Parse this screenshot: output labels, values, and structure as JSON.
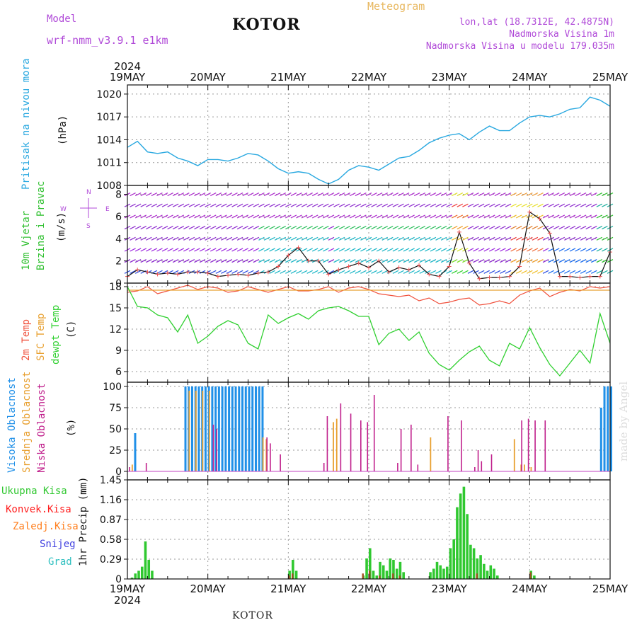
{
  "header": {
    "model_label": "Model",
    "model_name": "wrf-nmm_v3.9.1  e1km",
    "title": "KOTOR",
    "meteogram_label": "Meteogram",
    "lonlat": "lon,lat (18.7312E, 42.4875N)",
    "altitude": "Nadmorska Visina 1m",
    "model_altitude": "Nadmorska Visina u modelu 179.035m"
  },
  "footer": {
    "station": "KOTOR",
    "credit": "made by Angel"
  },
  "time_axis": {
    "year": "2024",
    "days": [
      "19MAY",
      "20MAY",
      "21MAY",
      "22MAY",
      "23MAY",
      "24MAY",
      "25MAY"
    ]
  },
  "colors": {
    "pressure": "#29a8e0",
    "temp2m": "#f0503c",
    "sfc_temp": "#e8a030",
    "dewpoint": "#30d030",
    "high_cloud": "#2090e8",
    "mid_cloud": "#e8a030",
    "low_cloud": "#c0208c",
    "wind_label": "#30c030",
    "compass": "#b04ad8",
    "total_precip": "#30c830",
    "conv_precip": "#ff2020",
    "frozen_precip": "#ff8020",
    "snow": "#4040e0",
    "hail": "#30c0c0"
  },
  "panels": {
    "pressure": {
      "label": "Pritisak na nivou mora",
      "unit": "(hPa)",
      "ticks": [
        "1008",
        "1011",
        "1014",
        "1017",
        "1020"
      ]
    },
    "wind": {
      "label1": "10m Vjetar",
      "label2": "Brzina i Pravac",
      "unit": "(m/s)",
      "ticks": [
        "0",
        "2",
        "4",
        "6",
        "8"
      ],
      "compass": {
        "n": "N",
        "s": "S",
        "e": "E",
        "w": "W"
      }
    },
    "temperature": {
      "label1": "2m Temp",
      "label2": "SFC Temp",
      "label3": "dewpt Temp",
      "unit": "(C)",
      "ticks": [
        "6",
        "9",
        "12",
        "15",
        "18"
      ]
    },
    "clouds": {
      "label1": "Visoka Oblacnost",
      "label2": "Srednja Oblacnost",
      "label3": "Niska Oblacnost",
      "unit": "(%)",
      "ticks": [
        "0",
        "25",
        "50",
        "75",
        "100"
      ]
    },
    "precip": {
      "label": "1hr Precip (mm)",
      "ticks": [
        "0",
        "0.29",
        "0.58",
        "0.87",
        "1.16",
        "1.45"
      ],
      "legend": [
        "Ukupna Kisa",
        "Konvek.Kisa",
        "Zaledj.Kisa",
        "Snijeg",
        "Grad"
      ]
    }
  },
  "chart_data": [
    {
      "type": "line",
      "ylabel": "Pritisak na nivou mora (hPa)",
      "ylim": [
        1008,
        1021.2
      ],
      "series": [
        {
          "name": "Pritisak na nivou mora",
          "x": [
            0,
            3,
            6,
            9,
            12,
            15,
            18,
            21,
            24,
            27,
            30,
            33,
            36,
            39,
            42,
            45,
            48,
            51,
            54,
            57,
            60,
            63,
            66,
            69,
            72,
            75,
            78,
            81,
            84,
            87,
            90,
            93,
            96,
            99,
            102,
            105,
            108,
            111,
            114,
            117,
            120,
            123,
            126,
            129,
            132,
            135,
            138,
            141,
            144
          ],
          "values": [
            1013.0,
            1013.8,
            1012.4,
            1012.2,
            1012.4,
            1011.6,
            1011.2,
            1010.6,
            1011.4,
            1011.4,
            1011.2,
            1011.6,
            1012.2,
            1012.0,
            1011.2,
            1010.2,
            1009.6,
            1009.8,
            1009.6,
            1008.8,
            1008.2,
            1008.8,
            1010.0,
            1010.6,
            1010.4,
            1010.0,
            1010.8,
            1011.6,
            1011.8,
            1012.6,
            1013.6,
            1014.2,
            1014.6,
            1014.8,
            1014.0,
            1015.0,
            1015.8,
            1015.2,
            1015.2,
            1016.2,
            1017.0,
            1017.2,
            1017.0,
            1017.4,
            1018.0,
            1018.2,
            1019.6,
            1019.2,
            1018.4
          ]
        }
      ],
      "x_unit": "hours from 19MAY 00UTC"
    },
    {
      "type": "line",
      "ylabel": "10m Vjetar Brzina i Pravac (m/s)",
      "ylim": [
        0,
        8.8
      ],
      "grid": true,
      "series": [
        {
          "name": "10m Vjetar",
          "x": [
            0,
            3,
            6,
            9,
            12,
            15,
            18,
            21,
            24,
            27,
            30,
            33,
            36,
            39,
            42,
            45,
            48,
            51,
            54,
            57,
            60,
            63,
            66,
            69,
            72,
            75,
            78,
            81,
            84,
            87,
            90,
            93,
            96,
            99,
            102,
            105,
            108,
            111,
            114,
            117,
            120,
            123,
            126,
            129,
            132,
            135,
            138,
            141,
            144
          ],
          "values": [
            0.6,
            1.2,
            1.0,
            0.8,
            0.9,
            0.8,
            1.0,
            1.0,
            0.9,
            0.6,
            0.7,
            0.8,
            0.7,
            0.9,
            1.0,
            1.5,
            2.5,
            3.2,
            2.0,
            2.0,
            0.8,
            1.2,
            1.5,
            1.8,
            1.4,
            2.0,
            1.0,
            1.4,
            1.2,
            1.6,
            0.8,
            0.6,
            1.5,
            4.6,
            1.8,
            0.4,
            0.5,
            0.5,
            0.6,
            1.5,
            6.4,
            5.8,
            4.5,
            0.6,
            0.6,
            0.5,
            0.6,
            0.6,
            2.8
          ]
        }
      ]
    },
    {
      "type": "line",
      "ylabel": "Temp (C)",
      "ylim": [
        4.5,
        18.5
      ],
      "series": [
        {
          "name": "2m Temp",
          "x": [
            0,
            3,
            6,
            9,
            12,
            15,
            18,
            21,
            24,
            27,
            30,
            33,
            36,
            39,
            42,
            45,
            48,
            51,
            54,
            57,
            60,
            63,
            66,
            69,
            72,
            75,
            78,
            81,
            84,
            87,
            90,
            93,
            96,
            99,
            102,
            105,
            108,
            111,
            114,
            117,
            120,
            123,
            126,
            129,
            132,
            135,
            138,
            141,
            144
          ],
          "values": [
            17.2,
            17.4,
            18.0,
            17.0,
            17.4,
            17.8,
            18.2,
            17.6,
            18.0,
            17.8,
            17.2,
            17.4,
            18.0,
            17.6,
            17.2,
            17.6,
            18.0,
            17.4,
            17.4,
            17.6,
            18.0,
            17.2,
            17.8,
            18.0,
            17.6,
            17.0,
            16.8,
            16.6,
            16.8,
            16.0,
            16.4,
            15.6,
            15.8,
            16.2,
            16.4,
            15.4,
            15.6,
            16.0,
            15.6,
            16.8,
            17.4,
            17.8,
            16.6,
            17.2,
            17.6,
            17.4,
            18.0,
            17.8,
            18.0
          ]
        },
        {
          "name": "SFC Temp",
          "x": [
            0,
            144
          ],
          "values": [
            17.5,
            17.5
          ]
        },
        {
          "name": "dewpt Temp",
          "x": [
            0,
            3,
            6,
            9,
            12,
            15,
            18,
            21,
            24,
            27,
            30,
            33,
            36,
            39,
            42,
            45,
            48,
            51,
            54,
            57,
            60,
            63,
            66,
            69,
            72,
            75,
            78,
            81,
            84,
            87,
            90,
            93,
            96,
            99,
            102,
            105,
            108,
            111,
            114,
            117,
            120,
            123,
            126,
            129,
            132,
            135,
            138,
            141,
            144
          ],
          "values": [
            18.0,
            15.2,
            15.0,
            14.0,
            13.6,
            11.6,
            14.0,
            10.0,
            11.0,
            12.4,
            13.2,
            12.6,
            10.0,
            9.2,
            14.0,
            12.8,
            13.6,
            14.2,
            13.4,
            14.6,
            15.0,
            15.2,
            14.6,
            13.8,
            13.8,
            9.8,
            11.4,
            12.0,
            10.4,
            11.6,
            8.6,
            7.0,
            6.2,
            7.6,
            8.8,
            9.6,
            7.6,
            6.8,
            10.0,
            9.2,
            12.2,
            9.4,
            7.0,
            5.4,
            7.2,
            9.0,
            7.2,
            14.2,
            10.0
          ]
        }
      ]
    },
    {
      "type": "bar",
      "ylabel": "Oblacnost (%)",
      "ylim": [
        0,
        100
      ],
      "series": [
        {
          "name": "Visoka Oblacnost",
          "x": [
            2,
            17,
            18,
            19,
            20,
            21,
            22,
            23,
            24,
            25,
            26,
            27,
            28,
            29,
            30,
            31,
            32,
            33,
            34,
            35,
            36,
            37,
            38,
            39,
            40,
            141,
            142,
            143,
            144
          ],
          "values": [
            45,
            100,
            100,
            100,
            100,
            100,
            100,
            100,
            100,
            100,
            100,
            100,
            100,
            100,
            100,
            100,
            100,
            100,
            100,
            100,
            100,
            100,
            100,
            100,
            100,
            75,
            100,
            100,
            100
          ]
        },
        {
          "name": "Srednja Oblacnost",
          "x": [
            1,
            18,
            20,
            22,
            24,
            40,
            41,
            61,
            62,
            90,
            115,
            117,
            118,
            120
          ],
          "values": [
            8,
            95,
            95,
            95,
            95,
            40,
            38,
            58,
            62,
            40,
            38,
            8,
            8,
            5
          ]
        },
        {
          "name": "Niska Oblacnost",
          "x": [
            0,
            5,
            25,
            26,
            41,
            42,
            45,
            58,
            59,
            63,
            66,
            69,
            71,
            73,
            80,
            81,
            84,
            86,
            95,
            99,
            103,
            104,
            105,
            108,
            117,
            119,
            121,
            124
          ],
          "values": [
            5,
            10,
            55,
            50,
            40,
            33,
            20,
            10,
            65,
            80,
            68,
            60,
            58,
            90,
            10,
            50,
            55,
            8,
            65,
            60,
            5,
            25,
            12,
            20,
            60,
            62,
            60,
            60
          ]
        }
      ]
    },
    {
      "type": "bar",
      "ylabel": "1hr Precip (mm)",
      "ylim": [
        0,
        1.45
      ],
      "series": [
        {
          "name": "Ukupna Kisa",
          "x": [
            1,
            2,
            3,
            4,
            5,
            6,
            7,
            48,
            49,
            50,
            70,
            71,
            72,
            73,
            74,
            75,
            76,
            77,
            78,
            79,
            80,
            81,
            82,
            90,
            91,
            92,
            93,
            94,
            95,
            96,
            97,
            98,
            99,
            100,
            101,
            102,
            103,
            104,
            105,
            106,
            107,
            108,
            109,
            110,
            120,
            121
          ],
          "values": [
            0.02,
            0.08,
            0.12,
            0.18,
            0.55,
            0.28,
            0.12,
            0.12,
            0.28,
            0.12,
            0.05,
            0.3,
            0.45,
            0.12,
            0.05,
            0.25,
            0.2,
            0.12,
            0.3,
            0.28,
            0.15,
            0.25,
            0.1,
            0.1,
            0.15,
            0.25,
            0.2,
            0.15,
            0.18,
            0.45,
            0.58,
            1.05,
            1.25,
            1.35,
            0.95,
            0.5,
            0.45,
            0.3,
            0.35,
            0.22,
            0.12,
            0.2,
            0.15,
            0.05,
            0.12,
            0.05
          ]
        },
        {
          "name": "Konvek.Kisa",
          "x": [
            48,
            49,
            70,
            72,
            75,
            79,
            81,
            104,
            120
          ],
          "values": [
            0.05,
            0.08,
            0.08,
            0.12,
            0.05,
            0.08,
            0.05,
            0.08,
            0.1
          ]
        }
      ]
    }
  ]
}
